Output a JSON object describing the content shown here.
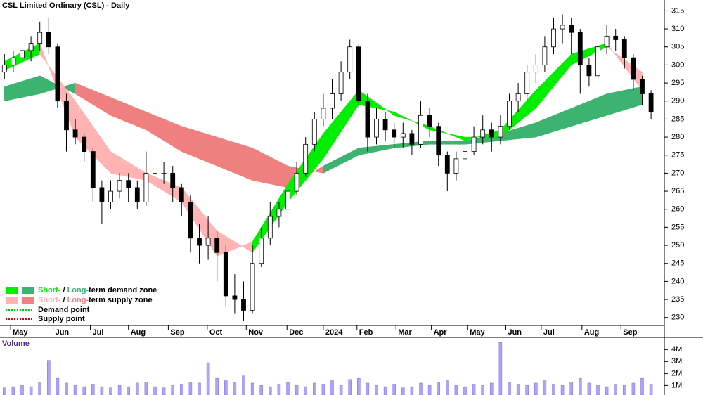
{
  "chart_data": [
    {
      "type": "candlestick",
      "title": "CSL Limited Ordinary (CSL) - Daily",
      "xlim": [
        -0.5,
        74.5
      ],
      "ylim": [
        228,
        318
      ],
      "yticks": [
        230,
        235,
        240,
        245,
        250,
        255,
        260,
        265,
        270,
        275,
        280,
        285,
        290,
        295,
        300,
        305,
        310,
        315
      ],
      "xticks": [
        {
          "value": 0.7,
          "label": "May"
        },
        {
          "value": 5.5,
          "label": "Jun"
        },
        {
          "value": 9.7,
          "label": "Jul"
        },
        {
          "value": 14.0,
          "label": "Aug"
        },
        {
          "value": 18.5,
          "label": "Sep"
        },
        {
          "value": 22.9,
          "label": "Oct"
        },
        {
          "value": 27.3,
          "label": "Nov"
        },
        {
          "value": 31.9,
          "label": "Dec"
        },
        {
          "value": 36.0,
          "label": "2024"
        },
        {
          "value": 39.8,
          "label": "Feb"
        },
        {
          "value": 44.2,
          "label": "Mar"
        },
        {
          "value": 48.2,
          "label": "Apr"
        },
        {
          "value": 52.3,
          "label": "May"
        },
        {
          "value": 56.6,
          "label": "Jun"
        },
        {
          "value": 60.6,
          "label": "Jul"
        },
        {
          "value": 65.2,
          "label": "Aug"
        },
        {
          "value": 69.6,
          "label": "Sep"
        }
      ],
      "open": [
        298,
        300,
        302,
        304,
        306,
        309,
        305,
        290,
        282,
        280,
        276,
        266,
        262,
        265,
        268,
        266,
        262,
        270,
        270,
        270,
        266,
        262,
        252,
        250,
        252,
        248,
        236,
        235,
        232,
        245,
        252,
        258,
        260,
        265,
        270,
        278,
        285,
        288,
        292,
        298,
        305,
        290,
        280,
        285,
        282,
        280,
        281,
        278,
        286,
        283,
        275,
        270,
        274,
        276,
        280,
        282,
        280,
        283,
        290,
        292,
        298,
        300,
        305,
        310,
        311,
        309,
        300,
        297,
        305,
        308,
        307,
        302,
        296,
        292
      ],
      "high": [
        303,
        304,
        306,
        308,
        312,
        313,
        306,
        292,
        285,
        281,
        277,
        268,
        268,
        270,
        270,
        268,
        276,
        274,
        273,
        272,
        267,
        264,
        256,
        258,
        254,
        250,
        242,
        240,
        250,
        255,
        262,
        262,
        268,
        273,
        280,
        287,
        292,
        296,
        301,
        307,
        306,
        292,
        288,
        287,
        284,
        284,
        282,
        290,
        288,
        284,
        276,
        276,
        278,
        283,
        286,
        284,
        286,
        292,
        295,
        300,
        303,
        308,
        313,
        314,
        313,
        310,
        302,
        310,
        311,
        310,
        308,
        303,
        297,
        293
      ],
      "low": [
        296,
        298,
        300,
        301,
        304,
        303,
        288,
        276,
        278,
        273,
        262,
        256,
        260,
        263,
        262,
        260,
        261,
        266,
        267,
        262,
        258,
        248,
        245,
        246,
        240,
        233,
        231,
        229,
        231,
        244,
        250,
        255,
        258,
        264,
        269,
        276,
        283,
        285,
        290,
        296,
        288,
        276,
        278,
        279,
        277,
        277,
        275,
        277,
        280,
        272,
        265,
        268,
        272,
        275,
        278,
        276,
        278,
        282,
        287,
        290,
        295,
        298,
        303,
        306,
        303,
        292,
        294,
        296,
        303,
        304,
        299,
        293,
        289,
        285
      ],
      "close": [
        300,
        302,
        304,
        306,
        309,
        305,
        290,
        282,
        280,
        276,
        266,
        262,
        265,
        268,
        266,
        262,
        270,
        270,
        270,
        266,
        262,
        252,
        250,
        252,
        248,
        236,
        235,
        232,
        245,
        252,
        258,
        260,
        265,
        270,
        278,
        285,
        288,
        292,
        298,
        305,
        290,
        280,
        285,
        282,
        280,
        281,
        278,
        286,
        283,
        275,
        270,
        274,
        276,
        280,
        282,
        280,
        283,
        290,
        292,
        298,
        300,
        305,
        310,
        311,
        309,
        300,
        297,
        305,
        308,
        307,
        302,
        296,
        292,
        287
      ],
      "candle_up_color": "#ffffff",
      "candle_down_color": "#000000",
      "zone_x": [
        0,
        4,
        8,
        12,
        16,
        20,
        24,
        28,
        32,
        36,
        40,
        44,
        48,
        52,
        56,
        60,
        64,
        68,
        72
      ],
      "zones": [
        {
          "demand_color": "#3cb371",
          "supply_color": "#f08080",
          "fast": [
            294,
            297,
            292,
            286,
            282,
            276,
            272,
            268,
            266,
            272,
            277,
            278,
            279,
            279,
            281,
            284,
            288,
            292,
            294
          ],
          "slow": [
            290,
            292,
            295,
            291,
            287,
            283,
            280,
            277,
            272,
            270,
            275,
            277,
            278,
            278,
            279,
            280,
            283,
            286,
            289
          ]
        },
        {
          "demand_color": "#00ee00",
          "supply_color": "#ffb3b3",
          "fast": [
            301,
            306,
            280,
            270,
            268,
            262,
            247,
            251,
            267,
            281,
            293,
            286,
            283,
            279,
            282,
            293,
            303,
            306,
            293
          ],
          "slow": [
            298.5,
            303,
            290,
            276,
            270,
            266,
            254,
            248,
            262,
            274,
            289,
            287,
            282,
            280,
            280,
            288,
            300,
            305,
            298
          ]
        }
      ],
      "legend": {
        "zones": [
          {
            "short": "Short-",
            "sep": " / ",
            "long": "Long-",
            "rest": "term demand zone"
          },
          {
            "short": "Short-",
            "sep": " / ",
            "long": "Long-",
            "rest": "term supply zone"
          }
        ],
        "points": [
          {
            "label": "Demand point",
            "color": "#00cc00"
          },
          {
            "label": "Supply point",
            "color": "#dd0000"
          }
        ]
      }
    },
    {
      "type": "bar",
      "title": "Volume",
      "color": "#7b68ee",
      "xlim": [
        -0.5,
        74.5
      ],
      "ylim": [
        0.2,
        4.9
      ],
      "yticks": [
        {
          "value": 1,
          "label": "1M"
        },
        {
          "value": 2,
          "label": "2M"
        },
        {
          "value": 3,
          "label": "3M"
        },
        {
          "value": 4,
          "label": "4M"
        }
      ],
      "values": [
        0.8,
        0.9,
        1.0,
        0.9,
        1.3,
        3.1,
        1.6,
        1.2,
        1.0,
        0.9,
        1.1,
        0.9,
        0.8,
        1.0,
        0.9,
        1.2,
        1.3,
        0.9,
        0.8,
        1.0,
        1.1,
        1.3,
        1.2,
        2.9,
        1.6,
        1.4,
        1.3,
        1.8,
        1.2,
        1.0,
        0.9,
        1.1,
        1.3,
        1.0,
        0.9,
        1.2,
        1.1,
        1.4,
        1.0,
        1.5,
        1.6,
        1.2,
        1.0,
        0.9,
        1.1,
        0.8,
        0.9,
        1.2,
        1.0,
        1.3,
        1.4,
        1.0,
        0.9,
        1.1,
        1.0,
        1.2,
        4.6,
        1.3,
        1.1,
        1.0,
        1.2,
        1.4,
        1.1,
        1.0,
        1.3,
        1.6,
        1.2,
        1.0,
        0.9,
        1.1,
        1.0,
        1.2,
        1.6,
        1.1
      ]
    }
  ]
}
